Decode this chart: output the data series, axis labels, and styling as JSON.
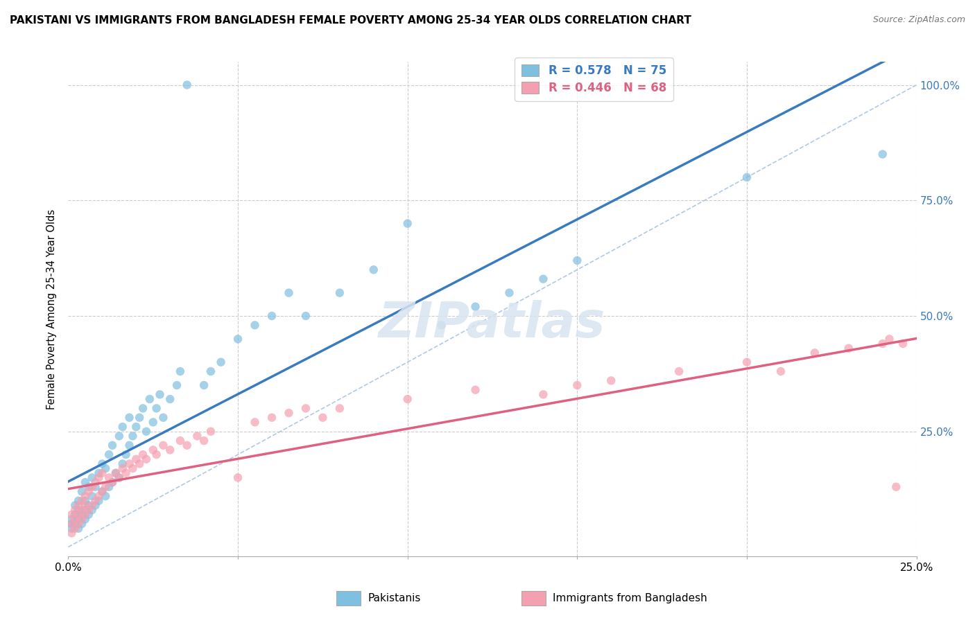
{
  "title": "PAKISTANI VS IMMIGRANTS FROM BANGLADESH FEMALE POVERTY AMONG 25-34 YEAR OLDS CORRELATION CHART",
  "source": "Source: ZipAtlas.com",
  "ylabel": "Female Poverty Among 25-34 Year Olds",
  "xlim": [
    0.0,
    0.25
  ],
  "ylim": [
    -0.02,
    1.05
  ],
  "pakistani_color": "#7fbfdf",
  "bangladesh_color": "#f4a0b0",
  "pakistani_R": 0.578,
  "pakistani_N": 75,
  "bangladesh_R": 0.446,
  "bangladesh_N": 68,
  "legend_label_1": "Pakistanis",
  "legend_label_2": "Immigrants from Bangladesh",
  "watermark_text": "ZIPatlas",
  "pak_x": [
    0.001,
    0.001,
    0.001,
    0.002,
    0.002,
    0.002,
    0.003,
    0.003,
    0.003,
    0.003,
    0.004,
    0.004,
    0.004,
    0.005,
    0.005,
    0.005,
    0.005,
    0.006,
    0.006,
    0.006,
    0.007,
    0.007,
    0.007,
    0.008,
    0.008,
    0.009,
    0.009,
    0.01,
    0.01,
    0.011,
    0.011,
    0.012,
    0.012,
    0.013,
    0.013,
    0.014,
    0.015,
    0.015,
    0.016,
    0.016,
    0.017,
    0.018,
    0.018,
    0.019,
    0.02,
    0.021,
    0.022,
    0.023,
    0.024,
    0.025,
    0.026,
    0.027,
    0.028,
    0.03,
    0.032,
    0.033,
    0.035,
    0.04,
    0.042,
    0.045,
    0.05,
    0.055,
    0.06,
    0.065,
    0.07,
    0.08,
    0.09,
    0.1,
    0.11,
    0.12,
    0.13,
    0.14,
    0.15,
    0.2,
    0.24
  ],
  "pak_y": [
    0.04,
    0.05,
    0.06,
    0.05,
    0.07,
    0.09,
    0.04,
    0.06,
    0.08,
    0.1,
    0.05,
    0.07,
    0.12,
    0.06,
    0.08,
    0.1,
    0.14,
    0.07,
    0.09,
    0.13,
    0.08,
    0.11,
    0.15,
    0.09,
    0.13,
    0.1,
    0.16,
    0.12,
    0.18,
    0.11,
    0.17,
    0.13,
    0.2,
    0.14,
    0.22,
    0.16,
    0.15,
    0.24,
    0.18,
    0.26,
    0.2,
    0.22,
    0.28,
    0.24,
    0.26,
    0.28,
    0.3,
    0.25,
    0.32,
    0.27,
    0.3,
    0.33,
    0.28,
    0.32,
    0.35,
    0.38,
    1.0,
    0.35,
    0.38,
    0.4,
    0.45,
    0.48,
    0.5,
    0.55,
    0.5,
    0.55,
    0.6,
    0.7,
    0.48,
    0.52,
    0.55,
    0.58,
    0.62,
    0.8,
    0.85
  ],
  "bang_x": [
    0.001,
    0.001,
    0.001,
    0.002,
    0.002,
    0.002,
    0.003,
    0.003,
    0.003,
    0.004,
    0.004,
    0.004,
    0.005,
    0.005,
    0.005,
    0.006,
    0.006,
    0.007,
    0.007,
    0.008,
    0.008,
    0.009,
    0.009,
    0.01,
    0.01,
    0.011,
    0.012,
    0.013,
    0.014,
    0.015,
    0.016,
    0.017,
    0.018,
    0.019,
    0.02,
    0.021,
    0.022,
    0.023,
    0.025,
    0.026,
    0.028,
    0.03,
    0.033,
    0.035,
    0.038,
    0.04,
    0.042,
    0.05,
    0.055,
    0.06,
    0.065,
    0.07,
    0.075,
    0.08,
    0.1,
    0.12,
    0.14,
    0.15,
    0.16,
    0.18,
    0.2,
    0.21,
    0.22,
    0.23,
    0.24,
    0.242,
    0.244,
    0.246
  ],
  "bang_y": [
    0.03,
    0.05,
    0.07,
    0.04,
    0.06,
    0.08,
    0.05,
    0.07,
    0.09,
    0.06,
    0.08,
    0.1,
    0.07,
    0.09,
    0.11,
    0.08,
    0.12,
    0.09,
    0.13,
    0.1,
    0.14,
    0.11,
    0.15,
    0.12,
    0.16,
    0.13,
    0.15,
    0.14,
    0.16,
    0.15,
    0.17,
    0.16,
    0.18,
    0.17,
    0.19,
    0.18,
    0.2,
    0.19,
    0.21,
    0.2,
    0.22,
    0.21,
    0.23,
    0.22,
    0.24,
    0.23,
    0.25,
    0.15,
    0.27,
    0.28,
    0.29,
    0.3,
    0.28,
    0.3,
    0.32,
    0.34,
    0.33,
    0.35,
    0.36,
    0.38,
    0.4,
    0.38,
    0.42,
    0.43,
    0.44,
    0.45,
    0.13,
    0.44
  ]
}
